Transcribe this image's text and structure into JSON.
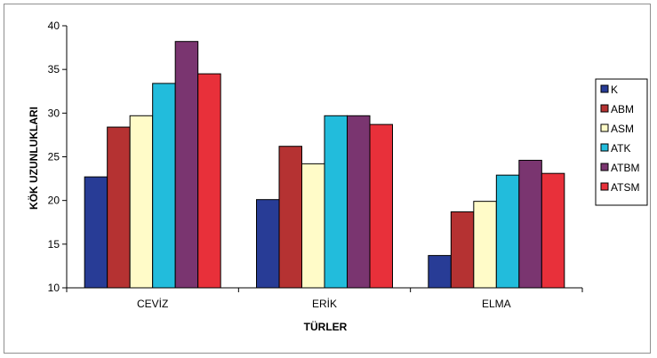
{
  "chart_data": {
    "type": "bar",
    "categories": [
      "CEVİZ",
      "ERİK",
      "ELMA"
    ],
    "series": [
      {
        "name": "K",
        "color": "#283c96",
        "values": [
          22.7,
          20.1,
          13.7
        ]
      },
      {
        "name": "ABM",
        "color": "#b53232",
        "values": [
          28.4,
          26.2,
          18.7
        ]
      },
      {
        "name": "ASM",
        "color": "#fffbc8",
        "values": [
          29.7,
          24.2,
          19.9
        ]
      },
      {
        "name": "ATK",
        "color": "#22bcdc",
        "values": [
          33.4,
          29.7,
          22.9
        ]
      },
      {
        "name": "ATBM",
        "color": "#7a3570",
        "values": [
          38.2,
          29.7,
          24.6
        ]
      },
      {
        "name": "ATSM",
        "color": "#e8303a",
        "values": [
          34.5,
          28.7,
          23.1
        ]
      }
    ],
    "xlabel": "TÜRLER",
    "ylabel": "KÖK UZUNLUKLARI",
    "ylim": [
      10,
      40
    ],
    "yticks": [
      "10",
      "15",
      "20",
      "25",
      "30",
      "35",
      "40"
    ],
    "grid": false,
    "legend_position": "right"
  }
}
